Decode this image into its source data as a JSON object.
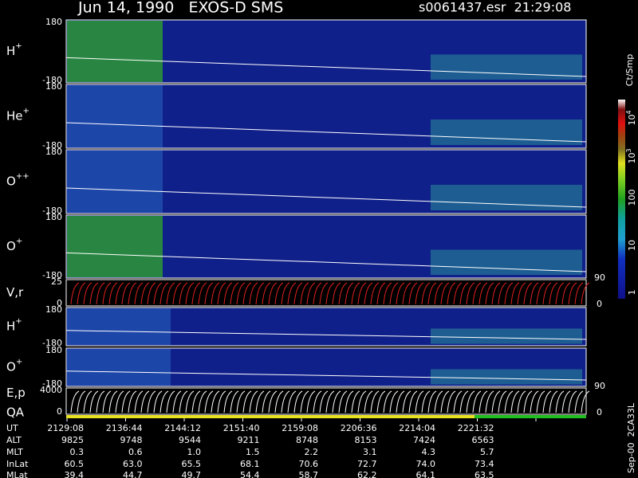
{
  "header": {
    "title": "Jun 14, 1990   EXOS-D SMS",
    "file": "s0061437.esr  21:29:08"
  },
  "panels": [
    {
      "label": "H",
      "sup": "+",
      "top": "180",
      "bottom": "-180"
    },
    {
      "label": "He",
      "sup": "+",
      "top": "180",
      "bottom": "-180"
    },
    {
      "label": "O",
      "sup": "++",
      "top": "180",
      "bottom": "-180"
    },
    {
      "label": "O",
      "sup": "+",
      "top": "180",
      "bottom": "-180"
    },
    {
      "label": "V,r",
      "top": "25",
      "bottom": "0",
      "right_top": "90",
      "right_bottom": "0"
    },
    {
      "label": "H",
      "sup": "+",
      "top": "180",
      "bottom": "-180"
    },
    {
      "label": "O",
      "sup": "+",
      "top": "180",
      "bottom": "-180"
    },
    {
      "label": "E,p",
      "label2": "QA",
      "top": "4000",
      "bottom": "0",
      "right_top": "90",
      "right_bottom": "0"
    }
  ],
  "colorbar": {
    "unit": "Ct/Smp",
    "labels": [
      {
        "base": "10",
        "sup": "4"
      },
      {
        "base": "10",
        "sup": "3"
      },
      {
        "base": "100"
      },
      {
        "base": "10"
      },
      {
        "base": "1"
      }
    ]
  },
  "footer": {
    "rows": [
      {
        "label": "UT",
        "values": [
          "2129:08",
          "2136:44",
          "2144:12",
          "2151:40",
          "2159:08",
          "2206:36",
          "2214:04",
          "2221:32"
        ]
      },
      {
        "label": "ALT",
        "values": [
          "9825",
          "9748",
          "9544",
          "9211",
          "8748",
          "8153",
          "7424",
          "6563"
        ]
      },
      {
        "label": "MLT",
        "values": [
          "0.3",
          "0.6",
          "1.0",
          "1.5",
          "2.2",
          "3.1",
          "4.3",
          "5.7"
        ]
      },
      {
        "label": "InLat",
        "values": [
          "60.5",
          "63.0",
          "65.5",
          "68.1",
          "70.6",
          "72.7",
          "74.0",
          "73.4"
        ]
      },
      {
        "label": "MLat",
        "values": [
          "39.4",
          "44.7",
          "49.7",
          "54.4",
          "58.7",
          "62.2",
          "64.1",
          "63.5"
        ]
      }
    ],
    "stamp": "Sep-00  2CA33L"
  }
}
